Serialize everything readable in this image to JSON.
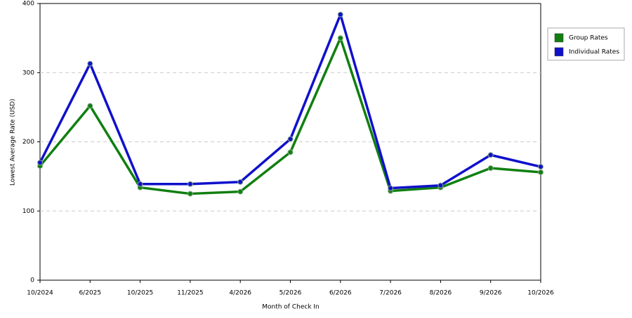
{
  "chart_data": {
    "type": "line",
    "x_label": "Month of Check In",
    "y_label": "Lowest Average Rate (USD)",
    "categories": [
      "10/2024",
      "6/2025",
      "10/2025",
      "11/2025",
      "4/2026",
      "5/2026",
      "6/2026",
      "7/2026",
      "8/2026",
      "9/2026",
      "10/2026"
    ],
    "series": [
      {
        "name": "Group Rates",
        "color": "#107f10",
        "values": [
          165,
          252,
          134,
          125,
          128,
          185,
          350,
          129,
          134,
          162,
          156
        ]
      },
      {
        "name": "Individual Rates",
        "color": "#1010cc",
        "values": [
          170,
          313,
          139,
          139,
          142,
          204,
          384,
          133,
          137,
          181,
          164
        ]
      }
    ],
    "ylim": [
      0,
      400
    ],
    "yticks": [
      0,
      100,
      200,
      300,
      400
    ],
    "grid": true,
    "legend": "right"
  }
}
